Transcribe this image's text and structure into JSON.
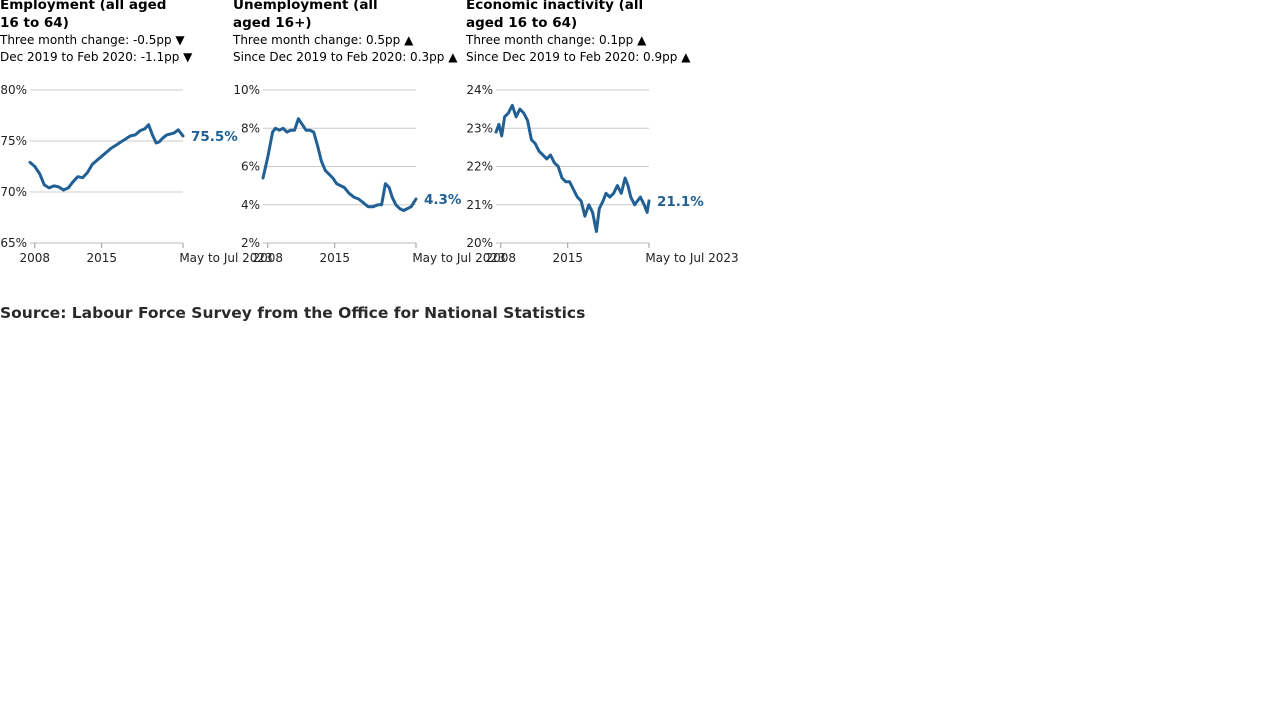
{
  "line_color": "#206095",
  "source": "Source: Labour Force Survey from the Office for National Statistics",
  "chart_data": [
    {
      "type": "line",
      "title": "Employment (all aged 16 to 64)",
      "change1": "Three month change: -0.5pp ▼",
      "change2": "Dec 2019 to Feb 2020: -1.1pp ▼",
      "xlim": [
        2007.5,
        2023.5
      ],
      "ylim": [
        65,
        80
      ],
      "yticks": [
        65,
        70,
        75,
        80
      ],
      "yticklabels": [
        "65%",
        "70%",
        "75%",
        "80%"
      ],
      "xticks": [
        2008,
        2015,
        2023.5
      ],
      "xticklabels": [
        "2008",
        "2015",
        "May to Jul 2023"
      ],
      "end_label": "75.5%",
      "x": [
        2007.5,
        2008.0,
        2008.5,
        2009.0,
        2009.5,
        2010.0,
        2010.5,
        2011.0,
        2011.5,
        2012.0,
        2012.5,
        2013.0,
        2013.5,
        2014.0,
        2014.5,
        2015.0,
        2015.5,
        2016.0,
        2016.5,
        2017.0,
        2017.5,
        2018.0,
        2018.5,
        2019.0,
        2019.5,
        2019.9,
        2020.3,
        2020.7,
        2021.0,
        2021.4,
        2021.8,
        2022.2,
        2022.6,
        2023.0,
        2023.5
      ],
      "y": [
        72.9,
        72.5,
        71.8,
        70.7,
        70.4,
        70.6,
        70.5,
        70.2,
        70.4,
        71.0,
        71.5,
        71.4,
        71.9,
        72.7,
        73.1,
        73.5,
        73.9,
        74.3,
        74.6,
        74.9,
        75.2,
        75.5,
        75.6,
        76.0,
        76.2,
        76.6,
        75.6,
        74.8,
        74.9,
        75.3,
        75.6,
        75.7,
        75.8,
        76.1,
        75.5
      ]
    },
    {
      "type": "line",
      "title": "Unemployment (all aged 16+)",
      "change1": "Three month change: 0.5pp ▲",
      "change2": "Since Dec 2019 to Feb 2020: 0.3pp ▲",
      "xlim": [
        2007.5,
        2023.5
      ],
      "ylim": [
        2,
        10
      ],
      "yticks": [
        2,
        4,
        6,
        8,
        10
      ],
      "yticklabels": [
        "2%",
        "4%",
        "6%",
        "8%",
        "10%"
      ],
      "xticks": [
        2008,
        2015,
        2023.5
      ],
      "xticklabels": [
        "2008",
        "2015",
        "May to Jul 2023"
      ],
      "end_label": "4.3%",
      "x": [
        2007.5,
        2008.0,
        2008.5,
        2008.8,
        2009.2,
        2009.6,
        2010.0,
        2010.4,
        2010.8,
        2011.2,
        2011.6,
        2012.0,
        2012.4,
        2012.8,
        2013.2,
        2013.6,
        2014.0,
        2014.4,
        2014.8,
        2015.2,
        2015.6,
        2016.0,
        2016.5,
        2017.0,
        2017.5,
        2018.0,
        2018.5,
        2019.0,
        2019.5,
        2019.9,
        2020.3,
        2020.7,
        2021.0,
        2021.4,
        2021.8,
        2022.2,
        2022.6,
        2023.0,
        2023.5
      ],
      "y": [
        5.4,
        6.5,
        7.8,
        8.0,
        7.9,
        8.0,
        7.8,
        7.9,
        7.9,
        8.5,
        8.2,
        7.9,
        7.9,
        7.8,
        7.1,
        6.3,
        5.8,
        5.6,
        5.4,
        5.1,
        5.0,
        4.9,
        4.6,
        4.4,
        4.3,
        4.1,
        3.9,
        3.9,
        4.0,
        4.0,
        5.1,
        4.9,
        4.4,
        4.0,
        3.8,
        3.7,
        3.8,
        3.9,
        4.3
      ]
    },
    {
      "type": "line",
      "title": "Economic inactivity (all aged 16 to 64)",
      "change1": "Three month change: 0.1pp ▲",
      "change2": "Since Dec 2019 to Feb 2020: 0.9pp ▲",
      "xlim": [
        2007.5,
        2023.5
      ],
      "ylim": [
        20,
        24
      ],
      "yticks": [
        20,
        21,
        22,
        23,
        24
      ],
      "yticklabels": [
        "20%",
        "21%",
        "22%",
        "23%",
        "24%"
      ],
      "xticks": [
        2008,
        2015,
        2023.5
      ],
      "xticklabels": [
        "2008",
        "2015",
        "May to Jul 2023"
      ],
      "end_label": "21.1%",
      "x": [
        2007.5,
        2007.8,
        2008.1,
        2008.4,
        2008.8,
        2009.2,
        2009.6,
        2010.0,
        2010.4,
        2010.8,
        2011.2,
        2011.6,
        2012.0,
        2012.4,
        2012.8,
        2013.2,
        2013.6,
        2014.0,
        2014.4,
        2014.8,
        2015.2,
        2015.6,
        2016.0,
        2016.4,
        2016.8,
        2017.2,
        2017.6,
        2018.0,
        2018.3,
        2018.7,
        2019.0,
        2019.4,
        2019.8,
        2020.2,
        2020.6,
        2021.0,
        2021.3,
        2021.6,
        2022.0,
        2022.3,
        2022.6,
        2023.0,
        2023.3,
        2023.5
      ],
      "y": [
        22.9,
        23.1,
        22.8,
        23.3,
        23.4,
        23.6,
        23.3,
        23.5,
        23.4,
        23.2,
        22.7,
        22.6,
        22.4,
        22.3,
        22.2,
        22.3,
        22.1,
        22.0,
        21.7,
        21.6,
        21.6,
        21.4,
        21.2,
        21.1,
        20.7,
        21.0,
        20.8,
        20.3,
        20.9,
        21.1,
        21.3,
        21.2,
        21.3,
        21.5,
        21.3,
        21.7,
        21.5,
        21.2,
        21.0,
        21.1,
        21.2,
        21.0,
        20.8,
        21.1
      ]
    }
  ]
}
